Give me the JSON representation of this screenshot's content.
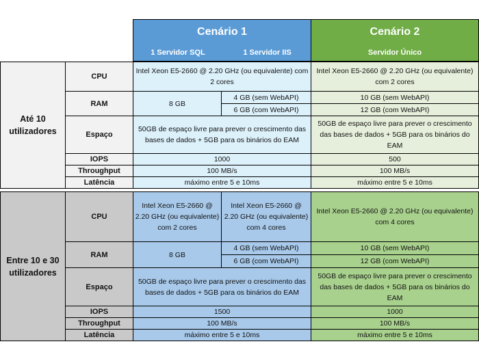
{
  "header": {
    "scenario1_title": "Cenário 1",
    "scenario1_sub_sql": "1 Servidor SQL",
    "scenario1_sub_iis": "1 Servidor IIS",
    "scenario2_title": "Cenário 2",
    "scenario2_sub": "Servidor Único"
  },
  "labels": {
    "cpu": "CPU",
    "ram": "RAM",
    "espaco": "Espaço",
    "iops": "IOPS",
    "throughput": "Throughput",
    "latencia": "Latência"
  },
  "group1": {
    "title": "Até 10 utilizadores",
    "cpu_s1": "Intel Xeon E5-2660 @ 2.20 GHz (ou equivalente) com 2 cores",
    "cpu_s2": "Intel Xeon E5-2660 @ 2.20 GHz (ou equivalente) com 2 cores",
    "ram_sql": "8 GB",
    "ram_iis_a": "4 GB (sem WebAPI)",
    "ram_iis_b": "6 GB (com WebAPI)",
    "ram_s2_a": "10 GB (sem WebAPI)",
    "ram_s2_b": "12 GB (com WebAPI)",
    "espaco_s1": "50GB de espaço livre para prever o crescimento das bases de dados + 5GB para os binários do EAM",
    "espaco_s2": "50GB de espaço livre para prever o crescimento das bases de dados + 5GB para os binários do EAM",
    "iops_s1": "1000",
    "iops_s2": "500",
    "throughput_s1": "100 MB/s",
    "throughput_s2": "100 MB/s",
    "latencia_s1": "máximo entre 5 e 10ms",
    "latencia_s2": "máximo entre 5 e 10ms"
  },
  "group2": {
    "title": "Entre 10 e 30 utilizadores",
    "cpu_sql": "Intel Xeon E5-2660 @ 2.20 GHz (ou equivalente) com 2 cores",
    "cpu_iis": "Intel Xeon E5-2660 @ 2.20 GHz (ou equivalente) com 4 cores",
    "cpu_s2": "Intel Xeon E5-2660 @ 2.20 GHz (ou equivalente) com 4 cores",
    "ram_sql": "8 GB",
    "ram_iis_a": "4 GB (sem WebAPI)",
    "ram_iis_b": "6 GB (com WebAPI)",
    "ram_s2_a": "10 GB (sem WebAPI)",
    "ram_s2_b": "12 GB (com WebAPI)",
    "espaco_s1": "50GB de espaço livre para prever o crescimento das bases de dados + 5GB para os binários do EAM",
    "espaco_s2": "50GB de espaço livre para prever o crescimento das bases de dados + 5GB para os binários do EAM",
    "iops_s1": "1500",
    "iops_s2": "1000",
    "throughput_s1": "100 MB/s",
    "throughput_s2": "100 MB/s",
    "latencia_s1": "máximo entre 5 e 10ms",
    "latencia_s2": "máximo entre 5 e 10ms"
  }
}
